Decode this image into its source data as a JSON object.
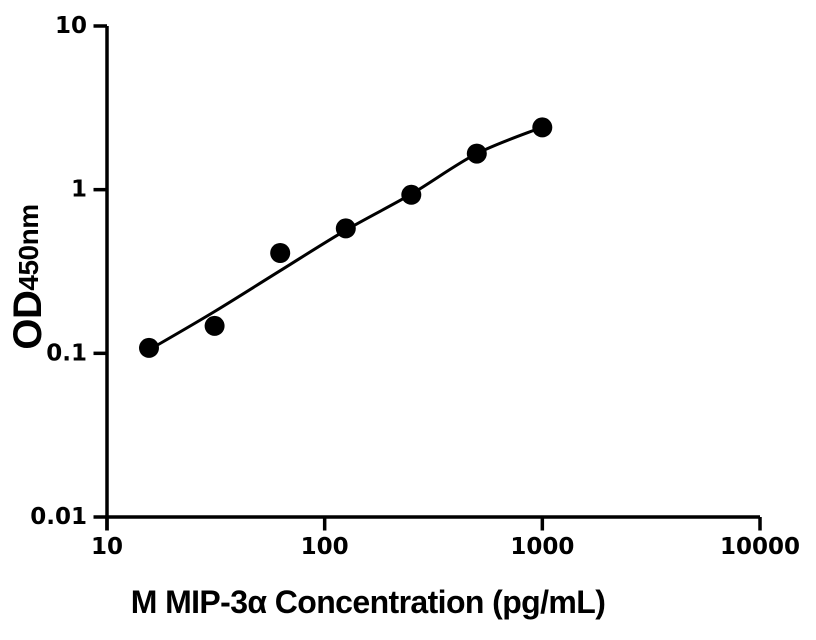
{
  "figure": {
    "background": "#ffffff",
    "ink_color": "#000000"
  },
  "chart_data": {
    "type": "scatter",
    "title": "",
    "xlabel": "M MIP-3α Concentration (pg/mL)",
    "ylabel_main": "OD",
    "ylabel_sub": "450nm",
    "x_scale": "log10",
    "y_scale": "log10",
    "xlim": [
      10,
      10000
    ],
    "ylim": [
      0.01,
      10
    ],
    "x_ticks": [
      10,
      100,
      1000,
      10000
    ],
    "x_tick_labels": [
      "10",
      "100",
      "1000",
      "10000"
    ],
    "y_ticks": [
      0.01,
      0.1,
      1,
      10
    ],
    "y_tick_labels": [
      "0.01",
      "0.1",
      "1",
      "10"
    ],
    "grid": false,
    "legend": false,
    "marker": "filled-circle",
    "marker_color": "#000000",
    "series": [
      {
        "name": "standards-scatter",
        "type": "scatter",
        "color": "#000000",
        "points": [
          {
            "x": 15.6,
            "y": 0.108
          },
          {
            "x": 31.2,
            "y": 0.147
          },
          {
            "x": 62.5,
            "y": 0.41
          },
          {
            "x": 125,
            "y": 0.58
          },
          {
            "x": 250,
            "y": 0.93
          },
          {
            "x": 500,
            "y": 1.66
          },
          {
            "x": 1000,
            "y": 2.4
          }
        ]
      },
      {
        "name": "fit-curve",
        "type": "line",
        "color": "#000000",
        "points": [
          {
            "x": 15.6,
            "y": 0.105
          },
          {
            "x": 31.2,
            "y": 0.18
          },
          {
            "x": 62.5,
            "y": 0.32
          },
          {
            "x": 125,
            "y": 0.565
          },
          {
            "x": 250,
            "y": 0.94
          },
          {
            "x": 500,
            "y": 1.66
          },
          {
            "x": 1000,
            "y": 2.41
          }
        ]
      }
    ]
  }
}
